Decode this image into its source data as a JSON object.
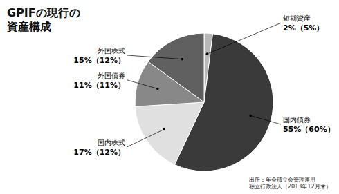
{
  "chart_data": {
    "type": "pie",
    "title": "GPIFの現行の\n資産構成",
    "categories": [
      "短期資産",
      "国内債券",
      "国内株式",
      "外国債券",
      "外国株式"
    ],
    "values": [
      2,
      55,
      17,
      11,
      15
    ],
    "value_labels": [
      "2%（5%）",
      "55%（60%）",
      "17%（12%）",
      "11%（11%）",
      "15%（12%）"
    ],
    "colors": [
      "#b8b8b8",
      "#3a3a3a",
      "#e0e0e0",
      "#888888",
      "#606060"
    ],
    "data_labels": true,
    "annotations": [
      "出所：年金積立金管理運用\n独立行政法人（2013年12月末）"
    ]
  }
}
